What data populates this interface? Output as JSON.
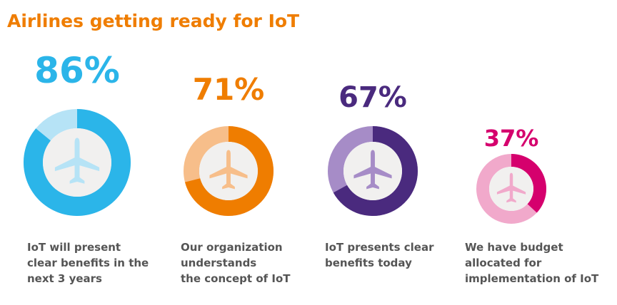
{
  "chart_data": {
    "type": "donut",
    "title": "Airlines getting ready for IoT",
    "categories": [
      "IoT will present\nclear benefits in the\nnext 3 years",
      "Our organization\nunderstands\nthe concept of IoT",
      "IoT presents clear\nbenefits today",
      "We have budget\nallocated for\nimplementation of IoT"
    ],
    "values": [
      86,
      71,
      67,
      37
    ],
    "value_labels": [
      "86%",
      "71%",
      "67%",
      "37%"
    ],
    "colors": [
      "#2bb5e9",
      "#ef7d00",
      "#4a2a7e",
      "#d5006d"
    ],
    "light_colors": [
      "#b6e3f6",
      "#f7be8a",
      "#a68cc7",
      "#f1a9cb"
    ]
  }
}
